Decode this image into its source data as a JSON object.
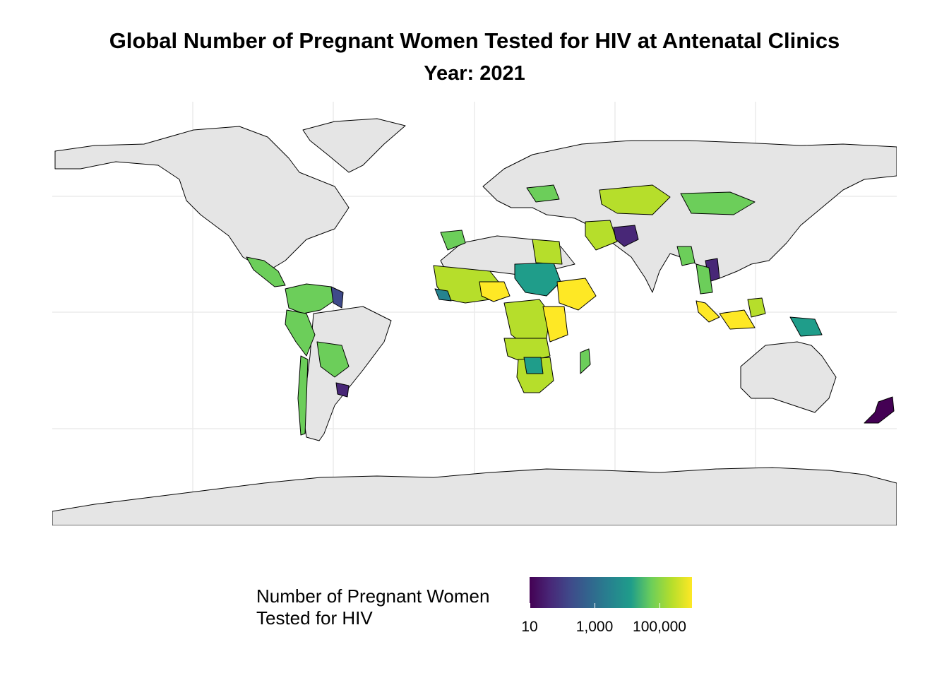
{
  "title": "Global Number of Pregnant Women Tested for HIV at Antenatal Clinics",
  "subtitle": "Year: 2021",
  "legend": {
    "title_line1": "Number of Pregnant Women",
    "title_line2": "Tested for HIV",
    "scale": "log10",
    "range": [
      10,
      1000000
    ],
    "ticks": [
      {
        "value": 10,
        "label": "10"
      },
      {
        "value": 1000,
        "label": "1,000"
      },
      {
        "value": 100000,
        "label": "100,000"
      }
    ],
    "palette": [
      "#440154",
      "#482777",
      "#3f4a8a",
      "#31678e",
      "#26838f",
      "#1f9d8a",
      "#6cce5a",
      "#b6de2b",
      "#fee825"
    ]
  },
  "colors": {
    "no_data": "#e5e5e5",
    "border": "#000000",
    "grid": "#ebebeb",
    "background": "#ffffff"
  }
}
